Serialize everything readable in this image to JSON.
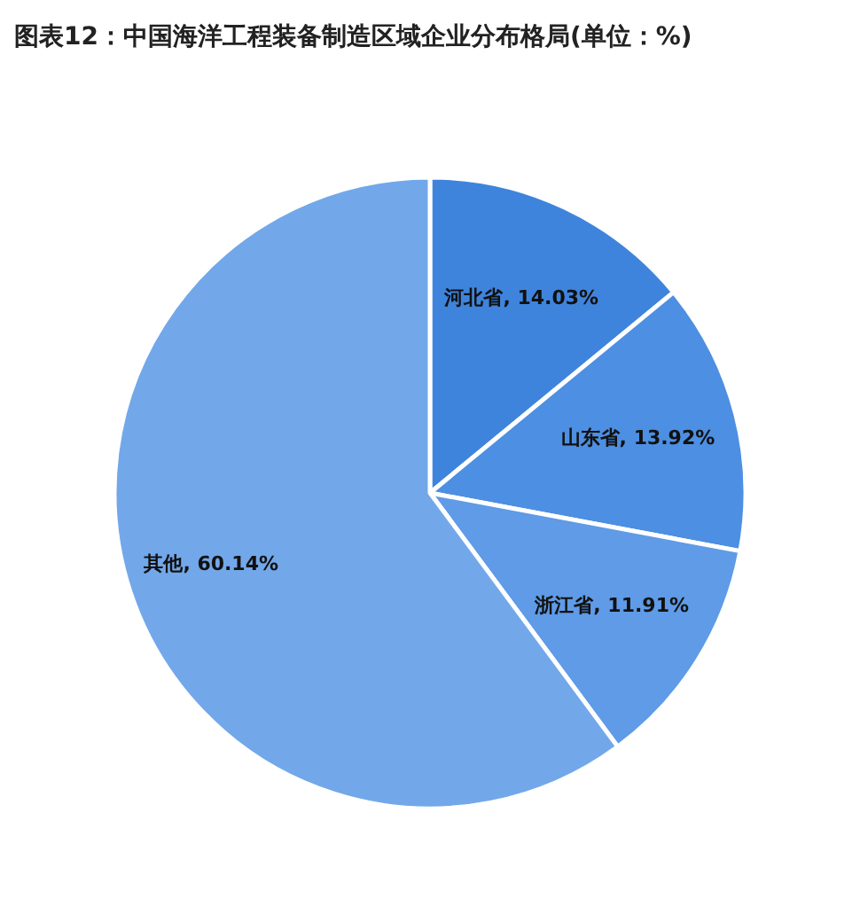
{
  "chart_data": {
    "type": "pie",
    "title": "图表12：中国海洋工程装备制造区域企业分布格局(单位：%)",
    "categories": [
      "河北省",
      "山东省",
      "浙江省",
      "其他"
    ],
    "values": [
      14.03,
      13.92,
      11.91,
      60.14
    ],
    "value_labels": [
      "14.03%",
      "13.92%",
      "11.91%",
      "60.14%"
    ],
    "colors": [
      "#3f84dc",
      "#4d8fe2",
      "#5f9be6",
      "#72a8ea"
    ],
    "legend": false
  }
}
